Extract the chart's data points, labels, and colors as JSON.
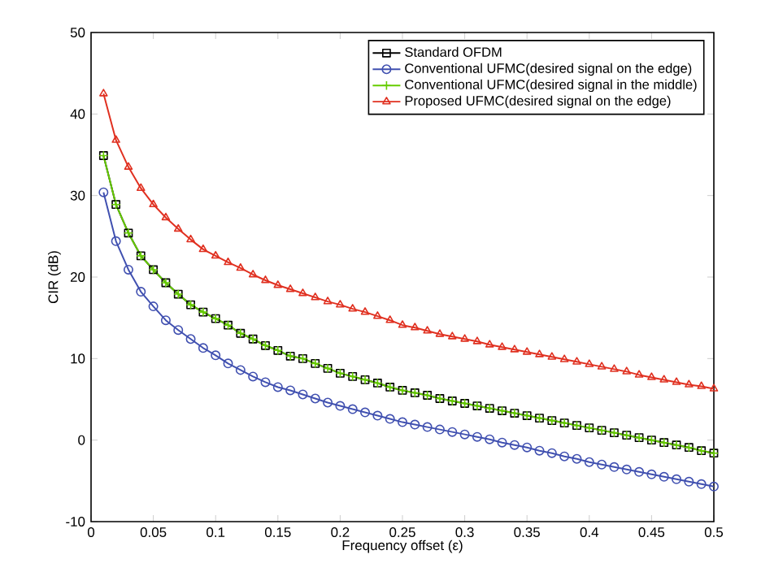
{
  "chart_data": {
    "type": "line",
    "xlabel": "Frequency offset (ε)",
    "ylabel": "CIR (dB)",
    "x": [
      0.01,
      0.02,
      0.03,
      0.04,
      0.05,
      0.06,
      0.07,
      0.08,
      0.09,
      0.1,
      0.11,
      0.12,
      0.13,
      0.14,
      0.15,
      0.16,
      0.17,
      0.18,
      0.19,
      0.2,
      0.21,
      0.22,
      0.23,
      0.24,
      0.25,
      0.26,
      0.27,
      0.28,
      0.29,
      0.3,
      0.31,
      0.32,
      0.33,
      0.34,
      0.35,
      0.36,
      0.37,
      0.38,
      0.39,
      0.4,
      0.41,
      0.42,
      0.43,
      0.44,
      0.45,
      0.46,
      0.47,
      0.48,
      0.49,
      0.5
    ],
    "series": [
      {
        "name": "Standard OFDM",
        "color": "#000000",
        "marker": "square",
        "values": [
          34.9,
          28.9,
          25.4,
          22.6,
          20.9,
          19.3,
          17.9,
          16.6,
          15.7,
          14.9,
          14.1,
          13.1,
          12.4,
          11.6,
          11.0,
          10.3,
          10.0,
          9.4,
          8.8,
          8.2,
          7.8,
          7.4,
          7.0,
          6.5,
          6.1,
          5.8,
          5.5,
          5.1,
          4.8,
          4.5,
          4.2,
          3.9,
          3.6,
          3.3,
          3.0,
          2.7,
          2.4,
          2.1,
          1.8,
          1.5,
          1.2,
          0.9,
          0.6,
          0.3,
          0.0,
          -0.3,
          -0.6,
          -0.9,
          -1.3,
          -1.6
        ]
      },
      {
        "name": "Conventional UFMC(desired signal on the edge)",
        "color": "#4050b0",
        "marker": "circle",
        "values": [
          30.4,
          24.4,
          20.9,
          18.2,
          16.4,
          14.7,
          13.5,
          12.4,
          11.3,
          10.4,
          9.4,
          8.6,
          7.8,
          7.1,
          6.5,
          6.1,
          5.6,
          5.1,
          4.6,
          4.2,
          3.8,
          3.4,
          3.0,
          2.6,
          2.2,
          1.9,
          1.6,
          1.3,
          1.0,
          0.7,
          0.4,
          0.1,
          -0.3,
          -0.6,
          -0.9,
          -1.3,
          -1.6,
          -2.0,
          -2.3,
          -2.7,
          -3.0,
          -3.3,
          -3.6,
          -3.9,
          -4.2,
          -4.5,
          -4.8,
          -5.1,
          -5.4,
          -5.7
        ]
      },
      {
        "name": "Conventional UFMC(desired signal in the middle)",
        "color": "#66cc00",
        "marker": "cross",
        "values": [
          34.9,
          28.9,
          25.4,
          22.6,
          20.9,
          19.3,
          17.9,
          16.6,
          15.7,
          14.9,
          14.1,
          13.1,
          12.4,
          11.6,
          11.0,
          10.3,
          10.0,
          9.4,
          8.8,
          8.2,
          7.8,
          7.4,
          7.0,
          6.5,
          6.1,
          5.8,
          5.5,
          5.1,
          4.8,
          4.5,
          4.2,
          3.9,
          3.6,
          3.3,
          3.0,
          2.7,
          2.4,
          2.1,
          1.8,
          1.5,
          1.2,
          0.9,
          0.6,
          0.3,
          0.0,
          -0.3,
          -0.6,
          -0.9,
          -1.3,
          -1.6
        ]
      },
      {
        "name": "Proposed UFMC(desired signal on the edge)",
        "color": "#e03020",
        "marker": "triangle",
        "values": [
          42.5,
          36.8,
          33.5,
          30.9,
          28.9,
          27.3,
          25.9,
          24.6,
          23.4,
          22.6,
          21.8,
          21.1,
          20.3,
          19.6,
          19.0,
          18.5,
          18.0,
          17.5,
          17.0,
          16.6,
          16.1,
          15.7,
          15.2,
          14.7,
          14.1,
          13.8,
          13.4,
          13.0,
          12.7,
          12.4,
          12.1,
          11.7,
          11.4,
          11.1,
          10.8,
          10.5,
          10.2,
          9.9,
          9.6,
          9.3,
          9.0,
          8.7,
          8.4,
          8.0,
          7.7,
          7.4,
          7.1,
          6.8,
          6.6,
          6.3
        ]
      }
    ],
    "xlim": [
      0,
      0.5
    ],
    "ylim": [
      -10,
      50
    ],
    "xticks": [
      0,
      0.05,
      0.1,
      0.15,
      0.2,
      0.25,
      0.3,
      0.35,
      0.4,
      0.45,
      0.5
    ],
    "yticks": [
      -10,
      0,
      10,
      20,
      30,
      40,
      50
    ],
    "grid": false,
    "legend": "top right",
    "line_style": "solid"
  }
}
